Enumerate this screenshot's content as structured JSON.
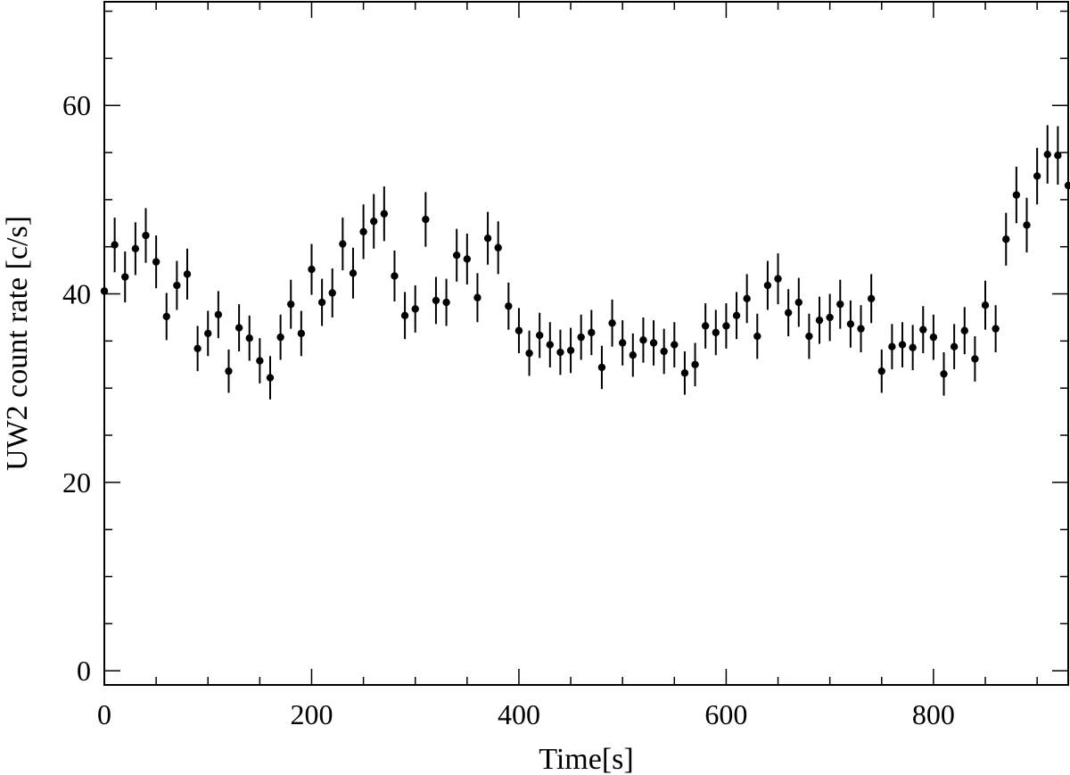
{
  "chart_data": {
    "type": "scatter",
    "xlabel": "Time[s]",
    "ylabel": "UW2 count rate [c/s]",
    "xlim": [
      0,
      930
    ],
    "ylim": [
      -1.5,
      71
    ],
    "xticks_major": [
      0,
      200,
      400,
      600,
      800
    ],
    "xticks_minor_step": 50,
    "yticks_major": [
      0,
      20,
      40,
      60
    ],
    "yticks_minor_step": 5,
    "grid": false,
    "marker": "filled-circle",
    "errorbars": "vertical",
    "color": "#000000",
    "series": [
      {
        "x": [
          0,
          10,
          20,
          30,
          40,
          50,
          60,
          70,
          80,
          90,
          100,
          110,
          120,
          130,
          140,
          150,
          160,
          170,
          180,
          190,
          200,
          210,
          220,
          230,
          240,
          250,
          260,
          270,
          280,
          290,
          300,
          310,
          320,
          330,
          340,
          350,
          360,
          370,
          380,
          390,
          400,
          410,
          420,
          430,
          440,
          450,
          460,
          470,
          480,
          490,
          500,
          510,
          520,
          530,
          540,
          550,
          560,
          570,
          580,
          590,
          600,
          610,
          620,
          630,
          640,
          650,
          660,
          670,
          680,
          690,
          700,
          710,
          720,
          730,
          740,
          750,
          760,
          770,
          780,
          790,
          800,
          810,
          820,
          830,
          840,
          850,
          860,
          870,
          880,
          890,
          900,
          910,
          920,
          930
        ],
        "y": [
          40.3,
          45.2,
          41.8,
          44.8,
          46.2,
          43.4,
          37.6,
          40.9,
          42.1,
          34.2,
          35.8,
          37.8,
          31.8,
          36.4,
          35.3,
          32.9,
          31.1,
          35.4,
          38.9,
          35.8,
          42.6,
          39.1,
          40.1,
          45.3,
          42.2,
          46.6,
          47.7,
          48.5,
          41.9,
          37.7,
          38.4,
          47.9,
          39.3,
          39.1,
          44.1,
          43.7,
          39.6,
          45.9,
          44.9,
          38.7,
          36.1,
          33.7,
          35.6,
          34.6,
          33.8,
          34.0,
          35.4,
          35.9,
          32.2,
          36.9,
          34.8,
          33.5,
          35.1,
          34.8,
          33.9,
          34.6,
          31.6,
          32.5,
          36.6,
          35.9,
          36.6,
          37.7,
          39.5,
          35.5,
          40.9,
          41.6,
          38.0,
          39.1,
          35.5,
          37.2,
          37.5,
          38.9,
          36.8,
          36.3,
          39.5,
          31.8,
          34.4,
          34.6,
          34.3,
          36.2,
          35.4,
          31.5,
          34.4,
          36.1,
          33.1,
          38.8,
          36.3,
          45.8,
          50.5,
          47.3,
          52.5,
          54.8,
          54.7,
          51.5
        ],
        "err": [
          2.6,
          2.9,
          2.7,
          2.8,
          2.9,
          2.8,
          2.5,
          2.6,
          2.7,
          2.4,
          2.4,
          2.5,
          2.3,
          2.5,
          2.4,
          2.4,
          2.3,
          2.4,
          2.6,
          2.4,
          2.7,
          2.5,
          2.6,
          2.8,
          2.7,
          2.9,
          2.9,
          2.9,
          2.7,
          2.5,
          2.5,
          2.9,
          2.5,
          2.5,
          2.8,
          2.7,
          2.6,
          2.8,
          2.8,
          2.5,
          2.4,
          2.4,
          2.4,
          2.4,
          2.4,
          2.4,
          2.4,
          2.4,
          2.3,
          2.5,
          2.4,
          2.3,
          2.4,
          2.4,
          2.4,
          2.4,
          2.3,
          2.3,
          2.4,
          2.4,
          2.4,
          2.5,
          2.6,
          2.4,
          2.6,
          2.7,
          2.5,
          2.6,
          2.4,
          2.5,
          2.5,
          2.6,
          2.5,
          2.5,
          2.6,
          2.3,
          2.4,
          2.4,
          2.4,
          2.5,
          2.4,
          2.3,
          2.4,
          2.5,
          2.4,
          2.6,
          2.5,
          2.8,
          3.0,
          2.9,
          3.0,
          3.1,
          3.1,
          3.0
        ]
      }
    ]
  }
}
